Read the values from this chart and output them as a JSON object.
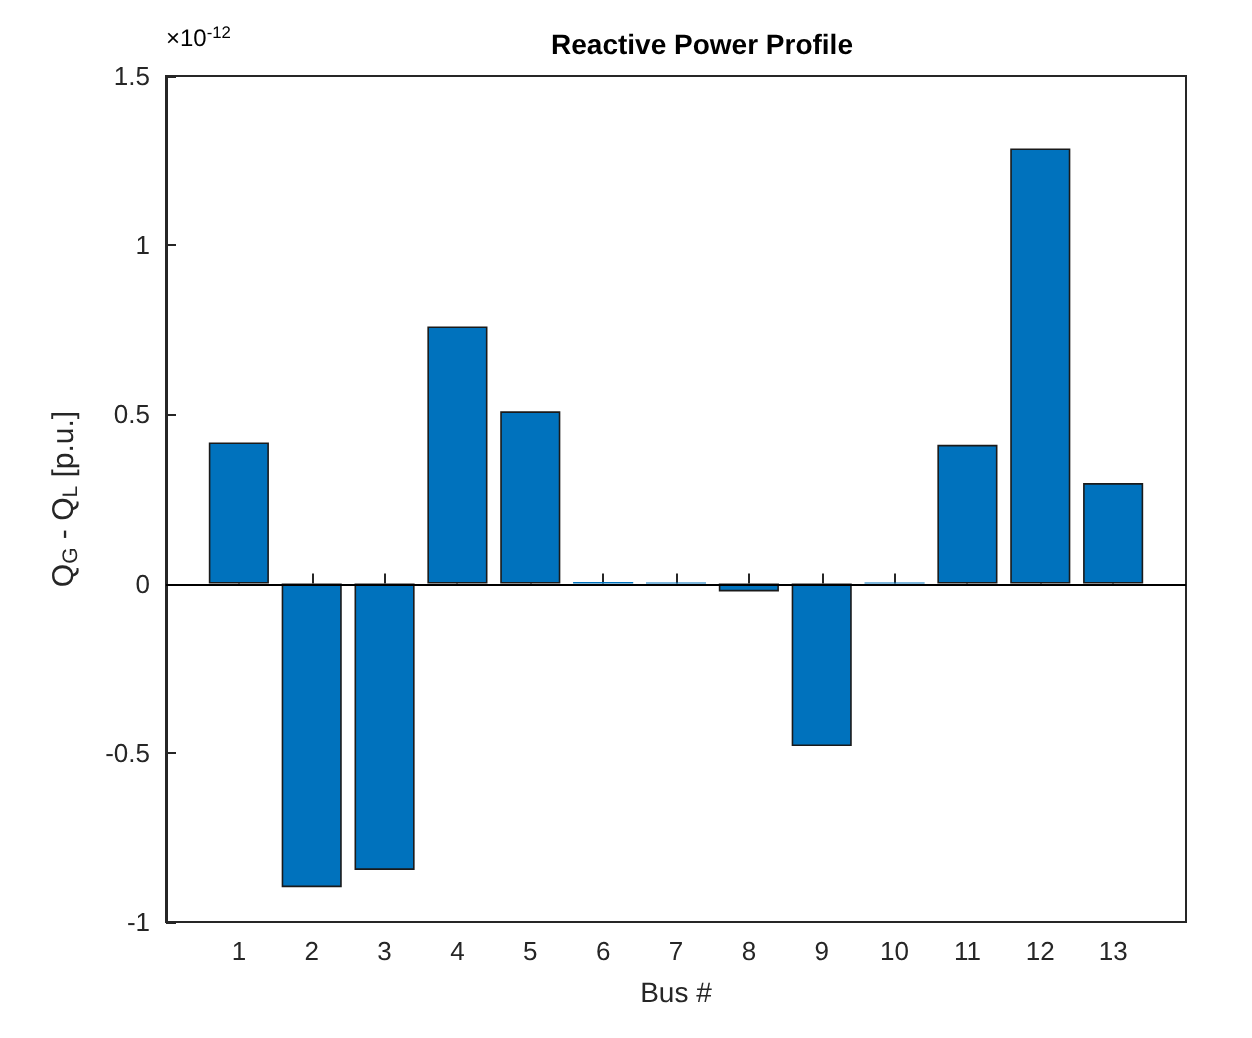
{
  "chart_data": {
    "type": "bar",
    "title": "Reactive Power Profile",
    "xlabel": "Bus #",
    "ylabel": "Q$_{G}$ - Q$_{L}$ [p.u.]",
    "annotations": [
      "×10$^{-12}$"
    ],
    "x": [
      1,
      2,
      3,
      4,
      5,
      6,
      7,
      8,
      9,
      10,
      11,
      12,
      13
    ],
    "values": [
      0.417,
      -0.897,
      -0.846,
      0.76,
      0.509,
      0.005,
      0.003,
      -0.023,
      -0.48,
      0.003,
      0.41,
      1.286,
      0.297
    ],
    "color": "#0072bd",
    "xlim": [
      0,
      14
    ],
    "xticks": [
      1,
      2,
      3,
      4,
      5,
      6,
      7,
      8,
      9,
      10,
      11,
      12,
      13
    ],
    "ylim": [
      -1,
      1.5
    ],
    "yticks": [
      -1,
      -0.5,
      0,
      0.5,
      1,
      1.5
    ],
    "ref_lines": [
      {
        "axis": "y",
        "value": 0
      }
    ],
    "grid": false
  }
}
